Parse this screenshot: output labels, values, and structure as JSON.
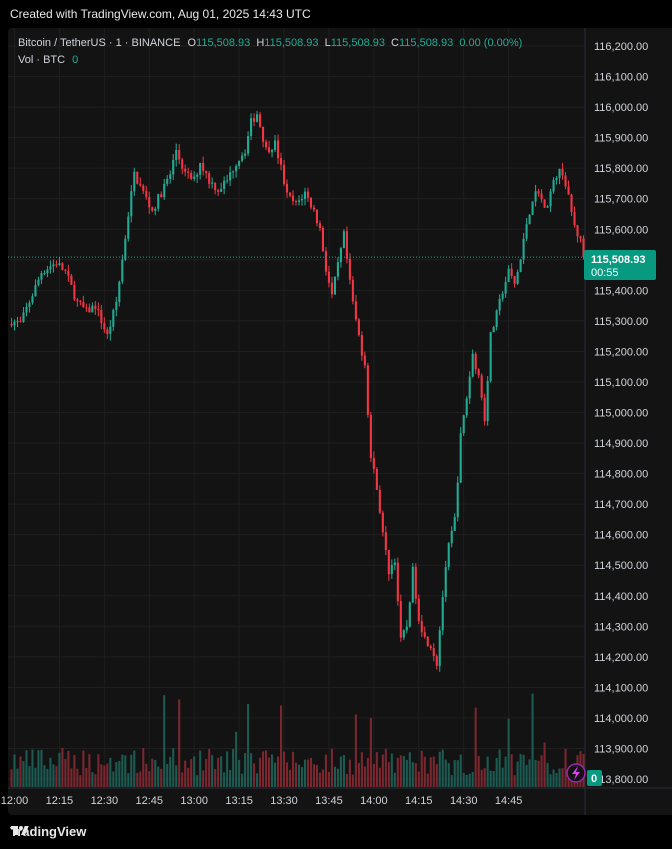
{
  "header": {
    "created_text": "Created with TradingView.com, Aug 01, 2025 14:43 UTC"
  },
  "legend": {
    "symbol": "Bitcoin / TetherUS · 1 · BINANCE",
    "o_label": "O",
    "o_value": "115,508.93",
    "h_label": "H",
    "h_value": "115,508.93",
    "l_label": "L",
    "l_value": "115,508.93",
    "c_label": "C",
    "c_value": "115,508.93",
    "change": "0.00 (0.00%)",
    "vol_label": "Vol · BTC",
    "vol_value": "0"
  },
  "price_tag": {
    "price": "115,508.93",
    "countdown": "00:55"
  },
  "volume_tag": "0",
  "footer": {
    "brand": "TradingView"
  },
  "colors": {
    "up": "#22ab94",
    "down": "#f23645",
    "bg": "#131313",
    "grid": "#1f1f1f",
    "axis_text": "#d1d4dc",
    "legend_value": "#22ab94",
    "tag": "#089981"
  },
  "chart_data": {
    "type": "candlestick",
    "ylim": [
      113800,
      116200
    ],
    "y_ticks": [
      116200,
      116100,
      116000,
      115900,
      115800,
      115700,
      115600,
      115500,
      115400,
      115300,
      115200,
      115100,
      115000,
      114900,
      114800,
      114700,
      114600,
      114500,
      114400,
      114300,
      114200,
      114100,
      114000,
      113900,
      113800
    ],
    "y_tick_labels": [
      "116,200.00",
      "116,100.00",
      "116,000.00",
      "115,900.00",
      "115,800.00",
      "115,700.00",
      "115,600.00",
      "115,500.00",
      "115,400.00",
      "115,300.00",
      "115,200.00",
      "115,100.00",
      "115,000.00",
      "114,900.00",
      "114,800.00",
      "114,700.00",
      "114,600.00",
      "114,500.00",
      "114,400.00",
      "114,300.00",
      "114,200.00",
      "114,100.00",
      "114,000.00",
      "113,900.00",
      "113,800.00"
    ],
    "x_tick_labels": [
      "12:00",
      "12:15",
      "12:30",
      "12:45",
      "13:00",
      "13:15",
      "13:30",
      "13:45",
      "14:00",
      "14:15",
      "14:30",
      "14:45"
    ],
    "first_time": "11:59",
    "minutes_per_candle": 1,
    "last_price": 115508.93,
    "anchors": [
      [
        0,
        115300
      ],
      [
        3,
        115290
      ],
      [
        5,
        115340
      ],
      [
        8,
        115410
      ],
      [
        10,
        115460
      ],
      [
        13,
        115480
      ],
      [
        15,
        115490
      ],
      [
        18,
        115460
      ],
      [
        22,
        115360
      ],
      [
        25,
        115330
      ],
      [
        28,
        115350
      ],
      [
        32,
        115250
      ],
      [
        35,
        115360
      ],
      [
        37,
        115500
      ],
      [
        39,
        115650
      ],
      [
        41,
        115780
      ],
      [
        44,
        115720
      ],
      [
        47,
        115660
      ],
      [
        50,
        115720
      ],
      [
        53,
        115780
      ],
      [
        55,
        115860
      ],
      [
        58,
        115780
      ],
      [
        61,
        115760
      ],
      [
        63,
        115820
      ],
      [
        66,
        115760
      ],
      [
        69,
        115730
      ],
      [
        72,
        115760
      ],
      [
        75,
        115820
      ],
      [
        78,
        115860
      ],
      [
        80,
        115950
      ],
      [
        82,
        115980
      ],
      [
        85,
        115860
      ],
      [
        88,
        115880
      ],
      [
        90,
        115800
      ],
      [
        92,
        115710
      ],
      [
        95,
        115680
      ],
      [
        98,
        115720
      ],
      [
        101,
        115660
      ],
      [
        103,
        115600
      ],
      [
        105,
        115470
      ],
      [
        107,
        115380
      ],
      [
        109,
        115480
      ],
      [
        111,
        115580
      ],
      [
        113,
        115420
      ],
      [
        115,
        115300
      ],
      [
        117,
        115200
      ],
      [
        118,
        115160
      ],
      [
        120,
        114850
      ],
      [
        122,
        114760
      ],
      [
        124,
        114600
      ],
      [
        126,
        114480
      ],
      [
        128,
        114520
      ],
      [
        130,
        114250
      ],
      [
        132,
        114300
      ],
      [
        134,
        114480
      ],
      [
        136,
        114330
      ],
      [
        138,
        114260
      ],
      [
        140,
        114240
      ],
      [
        142,
        114180
      ],
      [
        144,
        114400
      ],
      [
        146,
        114560
      ],
      [
        148,
        114650
      ],
      [
        150,
        114920
      ],
      [
        152,
        115050
      ],
      [
        154,
        115190
      ],
      [
        156,
        115120
      ],
      [
        158,
        114980
      ],
      [
        160,
        115250
      ],
      [
        162,
        115320
      ],
      [
        164,
        115400
      ],
      [
        166,
        115460
      ],
      [
        168,
        115420
      ],
      [
        170,
        115500
      ],
      [
        172,
        115620
      ],
      [
        174,
        115700
      ],
      [
        176,
        115730
      ],
      [
        178,
        115660
      ],
      [
        180,
        115720
      ],
      [
        182,
        115780
      ],
      [
        184,
        115790
      ],
      [
        186,
        115700
      ],
      [
        188,
        115610
      ],
      [
        190,
        115560
      ],
      [
        191,
        115508.93
      ]
    ]
  }
}
